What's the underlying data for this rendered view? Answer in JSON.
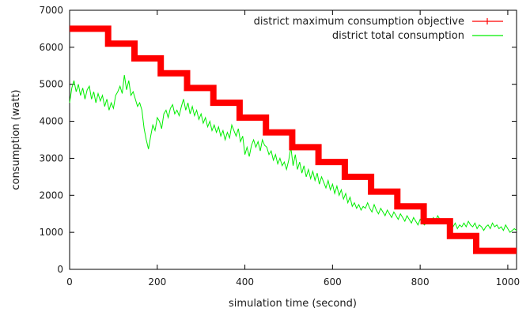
{
  "chart_data": {
    "type": "line",
    "title": "",
    "xlabel": "simulation time (second)",
    "ylabel": "consumption (watt)",
    "xlim": [
      0,
      1020
    ],
    "ylim": [
      0,
      7000
    ],
    "xticks": [
      0,
      200,
      400,
      600,
      800,
      1000
    ],
    "yticks": [
      0,
      1000,
      2000,
      3000,
      4000,
      5000,
      6000,
      7000
    ],
    "grid": false,
    "legend": "top-right",
    "series": [
      {
        "name": "district maximum consumption objective",
        "style": "step-with-markers",
        "color": "#ff0000",
        "marker": "plus",
        "steps": [
          {
            "x0": 0,
            "x1": 88,
            "y": 6500
          },
          {
            "x0": 88,
            "x1": 148,
            "y": 6100
          },
          {
            "x0": 148,
            "x1": 208,
            "y": 5700
          },
          {
            "x0": 208,
            "x1": 268,
            "y": 5300
          },
          {
            "x0": 268,
            "x1": 328,
            "y": 4900
          },
          {
            "x0": 328,
            "x1": 388,
            "y": 4500
          },
          {
            "x0": 388,
            "x1": 448,
            "y": 4100
          },
          {
            "x0": 448,
            "x1": 508,
            "y": 3700
          },
          {
            "x0": 508,
            "x1": 568,
            "y": 3300
          },
          {
            "x0": 568,
            "x1": 628,
            "y": 2900
          },
          {
            "x0": 628,
            "x1": 688,
            "y": 2500
          },
          {
            "x0": 688,
            "x1": 748,
            "y": 2100
          },
          {
            "x0": 748,
            "x1": 808,
            "y": 1700
          },
          {
            "x0": 808,
            "x1": 868,
            "y": 1300
          },
          {
            "x0": 868,
            "x1": 928,
            "y": 900
          },
          {
            "x0": 928,
            "x1": 1020,
            "y": 500
          }
        ]
      },
      {
        "name": "district total consumption",
        "style": "line",
        "color": "#00ee00",
        "points": [
          [
            0,
            4500
          ],
          [
            5,
            4900
          ],
          [
            10,
            5100
          ],
          [
            15,
            4800
          ],
          [
            20,
            5000
          ],
          [
            25,
            4700
          ],
          [
            30,
            4900
          ],
          [
            35,
            4600
          ],
          [
            40,
            4850
          ],
          [
            45,
            4950
          ],
          [
            50,
            4600
          ],
          [
            55,
            4800
          ],
          [
            60,
            4500
          ],
          [
            65,
            4750
          ],
          [
            70,
            4550
          ],
          [
            75,
            4700
          ],
          [
            80,
            4400
          ],
          [
            85,
            4600
          ],
          [
            90,
            4300
          ],
          [
            95,
            4500
          ],
          [
            100,
            4350
          ],
          [
            105,
            4700
          ],
          [
            110,
            4800
          ],
          [
            115,
            4950
          ],
          [
            120,
            4750
          ],
          [
            125,
            5250
          ],
          [
            130,
            4850
          ],
          [
            135,
            5100
          ],
          [
            140,
            4700
          ],
          [
            145,
            4800
          ],
          [
            150,
            4600
          ],
          [
            155,
            4400
          ],
          [
            160,
            4500
          ],
          [
            165,
            4300
          ],
          [
            170,
            3800
          ],
          [
            175,
            3500
          ],
          [
            180,
            3250
          ],
          [
            185,
            3600
          ],
          [
            190,
            3900
          ],
          [
            195,
            3750
          ],
          [
            200,
            4100
          ],
          [
            205,
            4000
          ],
          [
            210,
            3800
          ],
          [
            215,
            4200
          ],
          [
            220,
            4300
          ],
          [
            225,
            4100
          ],
          [
            230,
            4350
          ],
          [
            235,
            4450
          ],
          [
            240,
            4200
          ],
          [
            245,
            4300
          ],
          [
            250,
            4150
          ],
          [
            255,
            4400
          ],
          [
            260,
            4600
          ],
          [
            265,
            4300
          ],
          [
            270,
            4500
          ],
          [
            275,
            4200
          ],
          [
            280,
            4400
          ],
          [
            285,
            4150
          ],
          [
            290,
            4300
          ],
          [
            295,
            4050
          ],
          [
            300,
            4200
          ],
          [
            305,
            3950
          ],
          [
            310,
            4100
          ],
          [
            315,
            3850
          ],
          [
            320,
            4000
          ],
          [
            325,
            3750
          ],
          [
            330,
            3900
          ],
          [
            335,
            3700
          ],
          [
            340,
            3850
          ],
          [
            345,
            3600
          ],
          [
            350,
            3750
          ],
          [
            355,
            3500
          ],
          [
            360,
            3700
          ],
          [
            365,
            3550
          ],
          [
            370,
            3900
          ],
          [
            375,
            3750
          ],
          [
            380,
            3600
          ],
          [
            385,
            3800
          ],
          [
            390,
            3450
          ],
          [
            395,
            3600
          ],
          [
            400,
            3100
          ],
          [
            405,
            3300
          ],
          [
            410,
            3050
          ],
          [
            415,
            3350
          ],
          [
            420,
            3500
          ],
          [
            425,
            3300
          ],
          [
            430,
            3450
          ],
          [
            435,
            3200
          ],
          [
            440,
            3500
          ],
          [
            445,
            3350
          ],
          [
            450,
            3300
          ],
          [
            455,
            3100
          ],
          [
            460,
            3200
          ],
          [
            465,
            2950
          ],
          [
            470,
            3100
          ],
          [
            475,
            2850
          ],
          [
            480,
            3000
          ],
          [
            485,
            2800
          ],
          [
            490,
            2900
          ],
          [
            495,
            2700
          ],
          [
            500,
            2950
          ],
          [
            505,
            3300
          ],
          [
            510,
            2800
          ],
          [
            515,
            3100
          ],
          [
            520,
            2700
          ],
          [
            525,
            2900
          ],
          [
            530,
            2600
          ],
          [
            535,
            2800
          ],
          [
            540,
            2500
          ],
          [
            545,
            2700
          ],
          [
            550,
            2450
          ],
          [
            555,
            2650
          ],
          [
            560,
            2400
          ],
          [
            565,
            2600
          ],
          [
            570,
            2300
          ],
          [
            575,
            2500
          ],
          [
            580,
            2350
          ],
          [
            585,
            2200
          ],
          [
            590,
            2400
          ],
          [
            595,
            2150
          ],
          [
            600,
            2300
          ],
          [
            605,
            2050
          ],
          [
            610,
            2250
          ],
          [
            615,
            2000
          ],
          [
            620,
            2150
          ],
          [
            625,
            1900
          ],
          [
            630,
            2050
          ],
          [
            635,
            1800
          ],
          [
            640,
            1950
          ],
          [
            645,
            1700
          ],
          [
            650,
            1800
          ],
          [
            655,
            1650
          ],
          [
            660,
            1750
          ],
          [
            665,
            1600
          ],
          [
            670,
            1700
          ],
          [
            675,
            1650
          ],
          [
            680,
            1800
          ],
          [
            685,
            1650
          ],
          [
            690,
            1550
          ],
          [
            695,
            1750
          ],
          [
            700,
            1600
          ],
          [
            705,
            1500
          ],
          [
            710,
            1650
          ],
          [
            715,
            1550
          ],
          [
            720,
            1450
          ],
          [
            725,
            1600
          ],
          [
            730,
            1500
          ],
          [
            735,
            1400
          ],
          [
            740,
            1550
          ],
          [
            745,
            1450
          ],
          [
            750,
            1350
          ],
          [
            755,
            1500
          ],
          [
            760,
            1400
          ],
          [
            765,
            1300
          ],
          [
            770,
            1450
          ],
          [
            775,
            1350
          ],
          [
            780,
            1250
          ],
          [
            785,
            1400
          ],
          [
            790,
            1300
          ],
          [
            795,
            1200
          ],
          [
            800,
            1350
          ],
          [
            805,
            1250
          ],
          [
            810,
            1200
          ],
          [
            815,
            1300
          ],
          [
            820,
            1350
          ],
          [
            825,
            1250
          ],
          [
            830,
            1400
          ],
          [
            835,
            1300
          ],
          [
            840,
            1450
          ],
          [
            845,
            1350
          ],
          [
            850,
            1300
          ],
          [
            855,
            1250
          ],
          [
            860,
            1350
          ],
          [
            865,
            1200
          ],
          [
            870,
            1300
          ],
          [
            875,
            1150
          ],
          [
            880,
            1250
          ],
          [
            885,
            1100
          ],
          [
            890,
            1200
          ],
          [
            895,
            1150
          ],
          [
            900,
            1250
          ],
          [
            905,
            1150
          ],
          [
            910,
            1300
          ],
          [
            915,
            1200
          ],
          [
            920,
            1150
          ],
          [
            925,
            1250
          ],
          [
            930,
            1100
          ],
          [
            935,
            1200
          ],
          [
            940,
            1150
          ],
          [
            945,
            1050
          ],
          [
            950,
            1150
          ],
          [
            955,
            1200
          ],
          [
            960,
            1100
          ],
          [
            965,
            1250
          ],
          [
            970,
            1150
          ],
          [
            975,
            1200
          ],
          [
            980,
            1100
          ],
          [
            985,
            1150
          ],
          [
            990,
            1050
          ],
          [
            995,
            1200
          ],
          [
            1000,
            1100
          ],
          [
            1005,
            1000
          ],
          [
            1010,
            1050
          ],
          [
            1015,
            1100
          ],
          [
            1020,
            1050
          ]
        ]
      }
    ]
  },
  "colors": {
    "objective": "#ff0000",
    "total": "#00ee00",
    "axis": "#000000"
  }
}
